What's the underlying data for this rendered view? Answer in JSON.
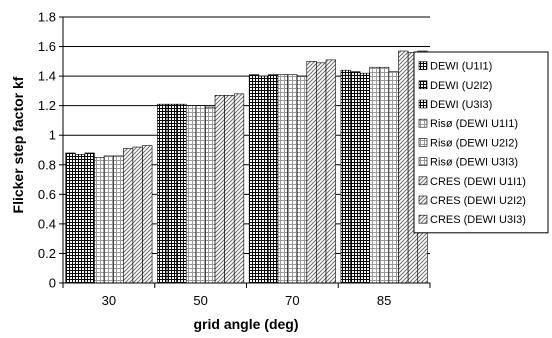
{
  "chart_data": {
    "type": "bar",
    "title": "",
    "xlabel": "grid angle (deg)",
    "ylabel": "Flicker step factor kf",
    "ylim": [
      0,
      1.8
    ],
    "yticks": [
      "0",
      "0.2",
      "0.4",
      "0.6",
      "0.8",
      "1",
      "1.2",
      "1.4",
      "1.6",
      "1.8"
    ],
    "grid": "horizontal",
    "legend_position": "right",
    "categories": [
      "30",
      "50",
      "70",
      "85"
    ],
    "series": [
      {
        "name": "DEWI (U1I1)",
        "pattern": "grid-dense",
        "values": [
          0.88,
          1.21,
          1.41,
          1.44
        ]
      },
      {
        "name": "DEWI (U2I2)",
        "pattern": "grid-dense",
        "values": [
          0.87,
          1.21,
          1.4,
          1.43
        ]
      },
      {
        "name": "DEWI (U3I3)",
        "pattern": "grid-dense",
        "values": [
          0.88,
          1.21,
          1.41,
          1.42
        ]
      },
      {
        "name": "Risø (DEWI U1I1)",
        "pattern": "grid-light",
        "values": [
          0.85,
          1.2,
          1.41,
          1.46
        ]
      },
      {
        "name": "Risø (DEWI U2I2)",
        "pattern": "grid-light",
        "values": [
          0.86,
          1.2,
          1.41,
          1.46
        ]
      },
      {
        "name": "Risø (DEWI U3I3)",
        "pattern": "grid-light",
        "values": [
          0.86,
          1.19,
          1.4,
          1.43
        ]
      },
      {
        "name": "CRES (DEWI U1I1)",
        "pattern": "diagonal",
        "values": [
          0.91,
          1.27,
          1.5,
          1.57
        ]
      },
      {
        "name": "CRES (DEWI U2I2)",
        "pattern": "diagonal",
        "values": [
          0.92,
          1.27,
          1.49,
          1.56
        ]
      },
      {
        "name": "CRES (DEWI U3I3)",
        "pattern": "diagonal",
        "values": [
          0.93,
          1.28,
          1.51,
          1.57
        ]
      }
    ]
  }
}
